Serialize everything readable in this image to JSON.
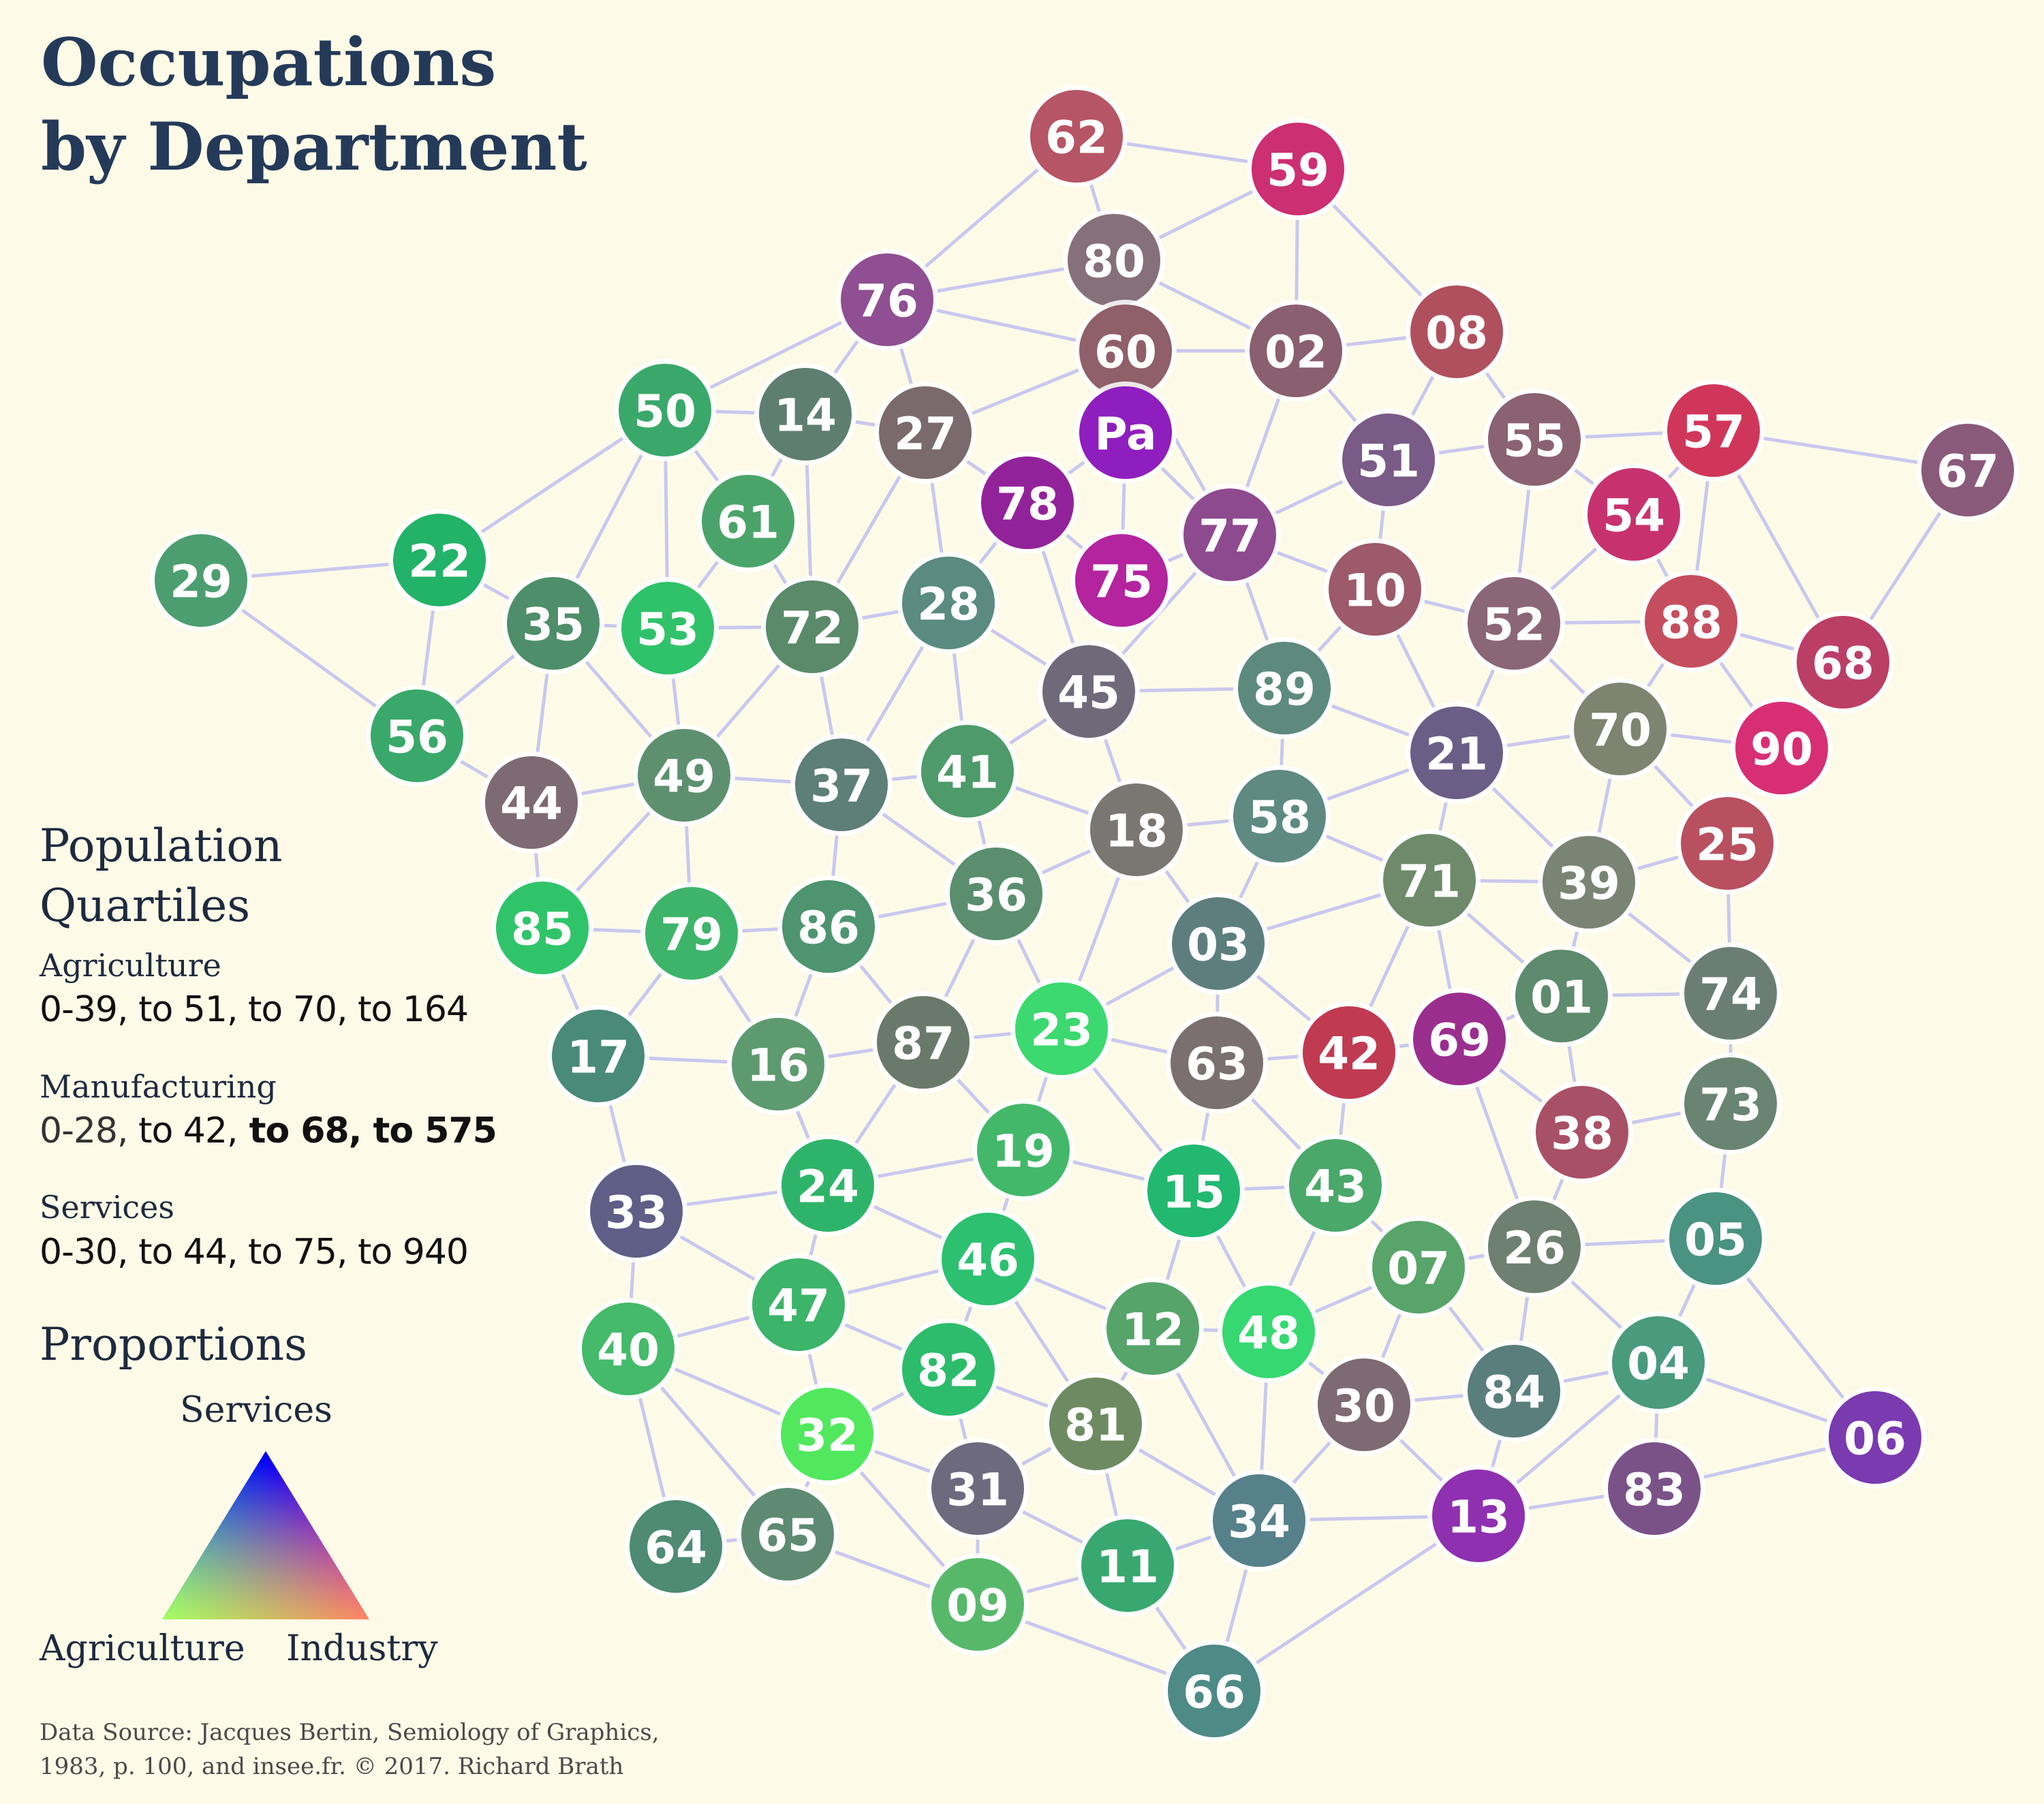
{
  "title_line1": "Occupations",
  "title_line2": "by Department",
  "legend": {
    "heading_line1": "Population",
    "heading_line2": "Quartiles",
    "agriculture_label": "Agriculture",
    "agriculture_q1": "0-39,",
    "agriculture_q2": " to 51,",
    "agriculture_q3": " to  70,",
    "agriculture_q4": " to  164",
    "manufacturing_label": "Manufacturing",
    "manufacturing_q1": "0-28,",
    "manufacturing_q2": " to 42,",
    "manufacturing_q3": " to 68,",
    "manufacturing_q4": " to 575",
    "services_label": "Services",
    "services_q1": "0-30,",
    "services_q2": " to 44,",
    "services_q3": " to 75,",
    "services_q4": " to 940",
    "proportions_heading": "Proportions",
    "triangle_top": "Services",
    "triangle_left": "Agriculture",
    "triangle_right": "Industry"
  },
  "source_line1": "Data Source: Jacques Bertin, Semiology of Graphics,",
  "source_line2": "1983, p. 100, and insee.fr. © 2017. Richard Brath",
  "colors": {
    "background": "#fdfbe8",
    "edge": "#c9c8ee",
    "agriculture": "#33ff00",
    "industry": "#ff0000",
    "services": "#0000ff"
  },
  "departments": [
    {
      "id": "62",
      "color": "#b65565"
    },
    {
      "id": "59",
      "color": "#cc2f72"
    },
    {
      "id": "80",
      "color": "#86707a"
    },
    {
      "id": "76",
      "color": "#8f4f92"
    },
    {
      "id": "60",
      "color": "#8f5f6a"
    },
    {
      "id": "02",
      "color": "#8a5f6f"
    },
    {
      "id": "08",
      "color": "#b0505e"
    },
    {
      "id": "50",
      "color": "#3aa86a"
    },
    {
      "id": "14",
      "color": "#5f7e72"
    },
    {
      "id": "27",
      "color": "#7a6a6e"
    },
    {
      "id": "Pa",
      "color": "#8f1ebe"
    },
    {
      "id": "51",
      "color": "#7a5a86"
    },
    {
      "id": "55",
      "color": "#8a6272"
    },
    {
      "id": "57",
      "color": "#d0365a"
    },
    {
      "id": "67",
      "color": "#8a5a7a"
    },
    {
      "id": "61",
      "color": "#4aa46a"
    },
    {
      "id": "78",
      "color": "#92229a"
    },
    {
      "id": "54",
      "color": "#c7326e"
    },
    {
      "id": "77",
      "color": "#8e4a8e"
    },
    {
      "id": "75",
      "color": "#b3249e"
    },
    {
      "id": "29",
      "color": "#4c9e70"
    },
    {
      "id": "22",
      "color": "#22b268"
    },
    {
      "id": "10",
      "color": "#9c5a6a"
    },
    {
      "id": "35",
      "color": "#4e8e6a"
    },
    {
      "id": "53",
      "color": "#30c26a"
    },
    {
      "id": "72",
      "color": "#5a8a6a"
    },
    {
      "id": "28",
      "color": "#5a8a80"
    },
    {
      "id": "52",
      "color": "#8a6676"
    },
    {
      "id": "88",
      "color": "#c54e5e"
    },
    {
      "id": "68",
      "color": "#bb3e66"
    },
    {
      "id": "45",
      "color": "#6e6a7a"
    },
    {
      "id": "89",
      "color": "#5e8a7e"
    },
    {
      "id": "56",
      "color": "#3aa86a"
    },
    {
      "id": "21",
      "color": "#6a5e86"
    },
    {
      "id": "70",
      "color": "#7e8470"
    },
    {
      "id": "90",
      "color": "#d82e74"
    },
    {
      "id": "44",
      "color": "#7e6a72"
    },
    {
      "id": "49",
      "color": "#5e9070"
    },
    {
      "id": "37",
      "color": "#5e7e78"
    },
    {
      "id": "41",
      "color": "#4e9a6a"
    },
    {
      "id": "18",
      "color": "#7a7672"
    },
    {
      "id": "58",
      "color": "#5e8a82"
    },
    {
      "id": "25",
      "color": "#b85060"
    },
    {
      "id": "71",
      "color": "#6e8a6a"
    },
    {
      "id": "39",
      "color": "#7a8474"
    },
    {
      "id": "36",
      "color": "#5a8e6e"
    },
    {
      "id": "85",
      "color": "#30c46a"
    },
    {
      "id": "79",
      "color": "#3eb46a"
    },
    {
      "id": "86",
      "color": "#4e9470"
    },
    {
      "id": "03",
      "color": "#5e7e7e"
    },
    {
      "id": "01",
      "color": "#5e8a6e"
    },
    {
      "id": "74",
      "color": "#6a7e76"
    },
    {
      "id": "17",
      "color": "#4a8a78"
    },
    {
      "id": "16",
      "color": "#5e9a70"
    },
    {
      "id": "87",
      "color": "#6a7a6a"
    },
    {
      "id": "23",
      "color": "#3cd870"
    },
    {
      "id": "63",
      "color": "#7a7070"
    },
    {
      "id": "42",
      "color": "#c03a52"
    },
    {
      "id": "69",
      "color": "#9a2e8e"
    },
    {
      "id": "73",
      "color": "#6a8472"
    },
    {
      "id": "38",
      "color": "#a85066"
    },
    {
      "id": "33",
      "color": "#5e5e86"
    },
    {
      "id": "24",
      "color": "#2eb46a"
    },
    {
      "id": "19",
      "color": "#44b86a"
    },
    {
      "id": "15",
      "color": "#22b870"
    },
    {
      "id": "43",
      "color": "#4aa86a"
    },
    {
      "id": "26",
      "color": "#6e8070"
    },
    {
      "id": "05",
      "color": "#4a9282"
    },
    {
      "id": "07",
      "color": "#58a46a"
    },
    {
      "id": "46",
      "color": "#2cc070"
    },
    {
      "id": "47",
      "color": "#3cb46a"
    },
    {
      "id": "40",
      "color": "#44ba6a"
    },
    {
      "id": "12",
      "color": "#56a46a"
    },
    {
      "id": "48",
      "color": "#36d872"
    },
    {
      "id": "82",
      "color": "#2cbc6c"
    },
    {
      "id": "30",
      "color": "#7e6a72"
    },
    {
      "id": "84",
      "color": "#5a7e7c"
    },
    {
      "id": "04",
      "color": "#4a9a7e"
    },
    {
      "id": "06",
      "color": "#7a3ab0"
    },
    {
      "id": "32",
      "color": "#52e85e"
    },
    {
      "id": "81",
      "color": "#6e8a62"
    },
    {
      "id": "31",
      "color": "#6e6a7e"
    },
    {
      "id": "13",
      "color": "#8e30b0"
    },
    {
      "id": "83",
      "color": "#7a5288"
    },
    {
      "id": "64",
      "color": "#4e8a74"
    },
    {
      "id": "65",
      "color": "#5e8a72"
    },
    {
      "id": "34",
      "color": "#56808a"
    },
    {
      "id": "11",
      "color": "#38a870"
    },
    {
      "id": "09",
      "color": "#58b86a"
    },
    {
      "id": "66",
      "color": "#4e8a86"
    }
  ],
  "connections": [
    [
      "62",
      "80"
    ],
    [
      "62",
      "76"
    ],
    [
      "62",
      "59"
    ],
    [
      "59",
      "80"
    ],
    [
      "59",
      "02"
    ],
    [
      "59",
      "08"
    ],
    [
      "80",
      "76"
    ],
    [
      "80",
      "60"
    ],
    [
      "80",
      "02"
    ],
    [
      "76",
      "60"
    ],
    [
      "76",
      "27"
    ],
    [
      "76",
      "14"
    ],
    [
      "76",
      "50"
    ],
    [
      "60",
      "02"
    ],
    [
      "60",
      "27"
    ],
    [
      "60",
      "Pa"
    ],
    [
      "60",
      "77"
    ],
    [
      "02",
      "08"
    ],
    [
      "02",
      "51"
    ],
    [
      "02",
      "77"
    ],
    [
      "08",
      "51"
    ],
    [
      "08",
      "55"
    ],
    [
      "50",
      "14"
    ],
    [
      "50",
      "35"
    ],
    [
      "50",
      "22"
    ],
    [
      "50",
      "53"
    ],
    [
      "50",
      "61"
    ],
    [
      "14",
      "61"
    ],
    [
      "14",
      "27"
    ],
    [
      "14",
      "72"
    ],
    [
      "27",
      "78"
    ],
    [
      "27",
      "28"
    ],
    [
      "27",
      "72"
    ],
    [
      "Pa",
      "78"
    ],
    [
      "Pa",
      "75"
    ],
    [
      "Pa",
      "77"
    ],
    [
      "78",
      "75"
    ],
    [
      "78",
      "28"
    ],
    [
      "78",
      "45"
    ],
    [
      "75",
      "77"
    ],
    [
      "77",
      "51"
    ],
    [
      "77",
      "10"
    ],
    [
      "77",
      "89"
    ],
    [
      "77",
      "45"
    ],
    [
      "51",
      "55"
    ],
    [
      "51",
      "10"
    ],
    [
      "55",
      "57"
    ],
    [
      "55",
      "52"
    ],
    [
      "55",
      "54"
    ],
    [
      "57",
      "67"
    ],
    [
      "57",
      "54"
    ],
    [
      "57",
      "88"
    ],
    [
      "57",
      "68"
    ],
    [
      "67",
      "68"
    ],
    [
      "54",
      "88"
    ],
    [
      "54",
      "52"
    ],
    [
      "29",
      "22"
    ],
    [
      "29",
      "56"
    ],
    [
      "22",
      "35"
    ],
    [
      "22",
      "56"
    ],
    [
      "35",
      "53"
    ],
    [
      "35",
      "56"
    ],
    [
      "35",
      "44"
    ],
    [
      "35",
      "49"
    ],
    [
      "53",
      "72"
    ],
    [
      "53",
      "49"
    ],
    [
      "61",
      "72"
    ],
    [
      "61",
      "53"
    ],
    [
      "72",
      "28"
    ],
    [
      "72",
      "49"
    ],
    [
      "72",
      "37"
    ],
    [
      "28",
      "45"
    ],
    [
      "28",
      "41"
    ],
    [
      "28",
      "37"
    ],
    [
      "10",
      "52"
    ],
    [
      "10",
      "89"
    ],
    [
      "10",
      "21"
    ],
    [
      "52",
      "88"
    ],
    [
      "52",
      "21"
    ],
    [
      "52",
      "70"
    ],
    [
      "88",
      "68"
    ],
    [
      "88",
      "70"
    ],
    [
      "88",
      "90"
    ],
    [
      "45",
      "89"
    ],
    [
      "45",
      "18"
    ],
    [
      "45",
      "41"
    ],
    [
      "89",
      "58"
    ],
    [
      "89",
      "21"
    ],
    [
      "56",
      "44"
    ],
    [
      "44",
      "49"
    ],
    [
      "44",
      "85"
    ],
    [
      "49",
      "37"
    ],
    [
      "49",
      "79"
    ],
    [
      "49",
      "85"
    ],
    [
      "37",
      "41"
    ],
    [
      "37",
      "86"
    ],
    [
      "37",
      "36"
    ],
    [
      "41",
      "36"
    ],
    [
      "41",
      "18"
    ],
    [
      "18",
      "58"
    ],
    [
      "18",
      "36"
    ],
    [
      "18",
      "03"
    ],
    [
      "18",
      "23"
    ],
    [
      "58",
      "21"
    ],
    [
      "58",
      "03"
    ],
    [
      "58",
      "71"
    ],
    [
      "21",
      "70"
    ],
    [
      "21",
      "71"
    ],
    [
      "21",
      "39"
    ],
    [
      "70",
      "90"
    ],
    [
      "70",
      "25"
    ],
    [
      "70",
      "39"
    ],
    [
      "25",
      "39"
    ],
    [
      "25",
      "74"
    ],
    [
      "71",
      "39"
    ],
    [
      "71",
      "03"
    ],
    [
      "71",
      "42"
    ],
    [
      "71",
      "69"
    ],
    [
      "71",
      "01"
    ],
    [
      "39",
      "01"
    ],
    [
      "39",
      "74"
    ],
    [
      "85",
      "79"
    ],
    [
      "85",
      "17"
    ],
    [
      "79",
      "86"
    ],
    [
      "79",
      "16"
    ],
    [
      "79",
      "17"
    ],
    [
      "86",
      "36"
    ],
    [
      "86",
      "87"
    ],
    [
      "86",
      "16"
    ],
    [
      "36",
      "87"
    ],
    [
      "36",
      "23"
    ],
    [
      "03",
      "23"
    ],
    [
      "03",
      "63"
    ],
    [
      "03",
      "42"
    ],
    [
      "01",
      "74"
    ],
    [
      "01",
      "69"
    ],
    [
      "01",
      "38"
    ],
    [
      "74",
      "73"
    ],
    [
      "17",
      "16"
    ],
    [
      "17",
      "33"
    ],
    [
      "16",
      "87"
    ],
    [
      "16",
      "24"
    ],
    [
      "87",
      "23"
    ],
    [
      "87",
      "24"
    ],
    [
      "87",
      "19"
    ],
    [
      "23",
      "63"
    ],
    [
      "23",
      "19"
    ],
    [
      "23",
      "15"
    ],
    [
      "63",
      "42"
    ],
    [
      "63",
      "15"
    ],
    [
      "63",
      "43"
    ],
    [
      "42",
      "69"
    ],
    [
      "42",
      "43"
    ],
    [
      "69",
      "38"
    ],
    [
      "69",
      "26"
    ],
    [
      "73",
      "38"
    ],
    [
      "73",
      "05"
    ],
    [
      "38",
      "26"
    ],
    [
      "33",
      "24"
    ],
    [
      "33",
      "40"
    ],
    [
      "33",
      "47"
    ],
    [
      "24",
      "19"
    ],
    [
      "24",
      "46"
    ],
    [
      "24",
      "47"
    ],
    [
      "19",
      "46"
    ],
    [
      "19",
      "15"
    ],
    [
      "15",
      "43"
    ],
    [
      "15",
      "12"
    ],
    [
      "15",
      "48"
    ],
    [
      "43",
      "07"
    ],
    [
      "43",
      "48"
    ],
    [
      "26",
      "07"
    ],
    [
      "26",
      "05"
    ],
    [
      "26",
      "84"
    ],
    [
      "26",
      "04"
    ],
    [
      "05",
      "04"
    ],
    [
      "05",
      "06"
    ],
    [
      "07",
      "48"
    ],
    [
      "07",
      "30"
    ],
    [
      "07",
      "84"
    ],
    [
      "46",
      "47"
    ],
    [
      "46",
      "82"
    ],
    [
      "46",
      "81"
    ],
    [
      "46",
      "12"
    ],
    [
      "47",
      "40"
    ],
    [
      "47",
      "82"
    ],
    [
      "47",
      "32"
    ],
    [
      "40",
      "32"
    ],
    [
      "40",
      "64"
    ],
    [
      "40",
      "65"
    ],
    [
      "12",
      "81"
    ],
    [
      "12",
      "48"
    ],
    [
      "12",
      "34"
    ],
    [
      "48",
      "30"
    ],
    [
      "48",
      "34"
    ],
    [
      "82",
      "32"
    ],
    [
      "82",
      "81"
    ],
    [
      "82",
      "31"
    ],
    [
      "30",
      "84"
    ],
    [
      "30",
      "34"
    ],
    [
      "30",
      "13"
    ],
    [
      "84",
      "04"
    ],
    [
      "84",
      "13"
    ],
    [
      "04",
      "83"
    ],
    [
      "04",
      "06"
    ],
    [
      "04",
      "13"
    ],
    [
      "06",
      "83"
    ],
    [
      "32",
      "31"
    ],
    [
      "32",
      "65"
    ],
    [
      "32",
      "09"
    ],
    [
      "81",
      "31"
    ],
    [
      "81",
      "11"
    ],
    [
      "81",
      "34"
    ],
    [
      "31",
      "09"
    ],
    [
      "31",
      "11"
    ],
    [
      "13",
      "34"
    ],
    [
      "13",
      "83"
    ],
    [
      "13",
      "66"
    ],
    [
      "34",
      "11"
    ],
    [
      "34",
      "66"
    ],
    [
      "64",
      "65"
    ],
    [
      "65",
      "09"
    ],
    [
      "11",
      "09"
    ],
    [
      "11",
      "66"
    ],
    [
      "09",
      "66"
    ]
  ]
}
